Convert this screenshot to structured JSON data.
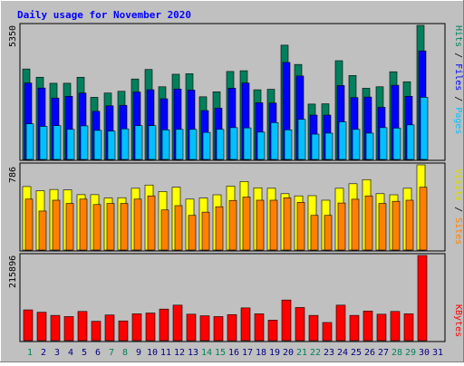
{
  "title": "Daily usage for November 2020",
  "colors": {
    "background": "#c0c0c0",
    "title": "#0000ff",
    "hits": "#00805c",
    "files": "#0000ff",
    "pages": "#00c0ff",
    "visits": "#ffff00",
    "sites": "#ff8000",
    "kbytes": "#ff0000",
    "weekend_day": "#00805c",
    "weekday_day": "#000080"
  },
  "panels": {
    "top": {
      "max_label": "5350",
      "legend": [
        {
          "text": "Hits",
          "color": "#00805c"
        },
        {
          "text": "Files",
          "color": "#0000ff"
        },
        {
          "text": "Pages",
          "color": "#00c0ff"
        }
      ],
      "separator": " / "
    },
    "middle": {
      "max_label": "786",
      "legend": [
        {
          "text": "Visits",
          "color": "#d8d800"
        },
        {
          "text": "Sites",
          "color": "#ff8000"
        }
      ],
      "separator": " / "
    },
    "bottom": {
      "max_label": "215896",
      "legend": [
        {
          "text": "KBytes",
          "color": "#ff0000"
        }
      ]
    }
  },
  "chart_data": {
    "type": "bar",
    "title": "Daily usage for November 2020",
    "categories": [
      "1",
      "2",
      "3",
      "4",
      "5",
      "6",
      "7",
      "8",
      "9",
      "10",
      "11",
      "12",
      "13",
      "14",
      "15",
      "16",
      "17",
      "18",
      "19",
      "20",
      "21",
      "22",
      "23",
      "24",
      "25",
      "26",
      "27",
      "28",
      "29",
      "30",
      "31"
    ],
    "weekend_days": [
      "1",
      "7",
      "8",
      "14",
      "15",
      "21",
      "22",
      "28",
      "29"
    ],
    "series": [
      {
        "name": "Hits",
        "panel": "top",
        "max": 5350,
        "values": [
          3610,
          3280,
          3040,
          3040,
          3280,
          2480,
          2650,
          2720,
          3210,
          3590,
          2900,
          3400,
          3420,
          2500,
          2700,
          3510,
          3540,
          2780,
          2800,
          4560,
          3790,
          2210,
          2220,
          3940,
          3350,
          2840,
          2900,
          3500,
          3100,
          5350,
          0
        ]
      },
      {
        "name": "Files",
        "panel": "top",
        "max": 5350,
        "values": [
          3050,
          2850,
          2450,
          2520,
          2650,
          1920,
          2140,
          2160,
          2690,
          2780,
          2420,
          2810,
          2770,
          1950,
          2050,
          2840,
          3050,
          2260,
          2250,
          3870,
          3330,
          1770,
          1770,
          2950,
          2470,
          2490,
          2080,
          2960,
          2520,
          4330,
          0
        ]
      },
      {
        "name": "Pages",
        "panel": "top",
        "max": 5350,
        "values": [
          1420,
          1320,
          1350,
          1200,
          1340,
          1160,
          1130,
          1220,
          1350,
          1350,
          1180,
          1200,
          1200,
          1080,
          1200,
          1270,
          1260,
          1090,
          1470,
          1180,
          1600,
          1010,
          1050,
          1500,
          1200,
          1050,
          1270,
          1250,
          1380,
          2480,
          0
        ]
      },
      {
        "name": "Visits",
        "panel": "middle",
        "max": 786,
        "values": [
          586,
          547,
          559,
          555,
          511,
          511,
          480,
          483,
          570,
          600,
          540,
          580,
          470,
          480,
          510,
          590,
          632,
          574,
          570,
          520,
          500,
          502,
          460,
          570,
          612,
          650,
          520,
          510,
          570,
          786,
          0
        ]
      },
      {
        "name": "Sites",
        "panel": "middle",
        "max": 786,
        "values": [
          470,
          360,
          460,
          430,
          470,
          420,
          430,
          430,
          470,
          500,
          370,
          410,
          320,
          350,
          400,
          458,
          489,
          460,
          460,
          482,
          440,
          320,
          320,
          434,
          469,
          500,
          430,
          450,
          460,
          580,
          0
        ]
      },
      {
        "name": "KBytes",
        "panel": "bottom",
        "max": 215896,
        "values": [
          78000,
          72000,
          64000,
          61000,
          74000,
          49000,
          65000,
          50000,
          68000,
          70000,
          80000,
          90000,
          67000,
          63000,
          61000,
          66000,
          83000,
          68000,
          52000,
          103000,
          84000,
          64000,
          46000,
          90000,
          64000,
          75000,
          67000,
          74000,
          68000,
          215896,
          0
        ]
      }
    ]
  }
}
